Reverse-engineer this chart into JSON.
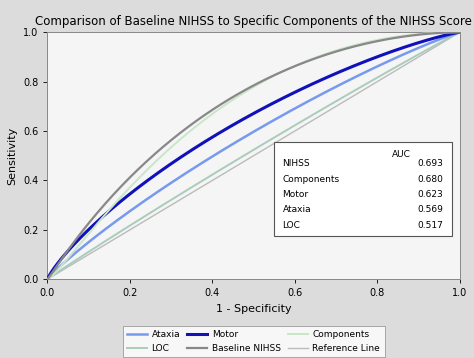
{
  "title": "Comparison of Baseline NIHSS to Specific Components of the NIHSS Score",
  "xlabel": "1 - Specificity",
  "ylabel": "Sensitivity",
  "xlim": [
    0.0,
    1.0
  ],
  "ylim": [
    0.0,
    1.0
  ],
  "xticks": [
    0.0,
    0.2,
    0.4,
    0.6,
    0.8,
    1.0
  ],
  "yticks": [
    0.0,
    0.2,
    0.4,
    0.6,
    0.8,
    1.0
  ],
  "curves": {
    "NIHSS_baseline": {
      "color": "#888888",
      "linewidth": 1.6,
      "label": "Baseline NIHSS"
    },
    "Components": {
      "color": "#c8e6c8",
      "linewidth": 1.4,
      "label": "Components"
    },
    "Motor": {
      "color": "#1111bb",
      "linewidth": 2.2,
      "label": "Motor"
    },
    "Ataxia": {
      "color": "#7799ee",
      "linewidth": 1.8,
      "label": "Ataxia"
    },
    "LOC": {
      "color": "#aaccbb",
      "linewidth": 1.4,
      "label": "LOC"
    },
    "Reference": {
      "color": "#bbbbbb",
      "linewidth": 1.0,
      "label": "Reference Line"
    }
  },
  "bg_color": "#dcdcdc",
  "plot_bg_color": "#f5f5f5",
  "title_fontsize": 8.5,
  "axis_fontsize": 8,
  "tick_fontsize": 7
}
